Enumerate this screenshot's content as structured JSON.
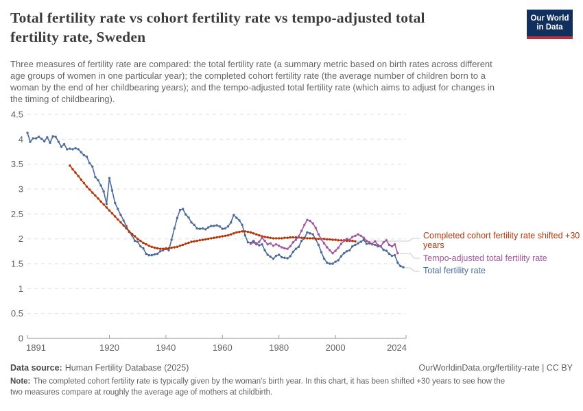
{
  "header": {
    "title_lines": [
      "Total fertility rate vs cohort fertility rate vs tempo-adjusted total",
      "fertility rate, Sweden"
    ],
    "subtitle_lines": [
      "Three measures of fertility rate are compared: the total fertility rate (a summary metric based on birth rates across different",
      "age groups of women in one particular year); the completed cohort fertility rate (the average number of children born to a",
      "woman by the end of her childbearing years); and the tempo-adjusted total fertility rate (which aims to adjust for changes in",
      "the timing of childbearing)."
    ],
    "logo": {
      "line1": "Our World",
      "line2": "in Data",
      "bg_color": "#12305e",
      "accent_color": "#bf3036"
    }
  },
  "chart_data": {
    "type": "line",
    "title": "Total fertility rate vs cohort fertility rate vs tempo-adjusted total fertility rate, Sweden",
    "xlim": [
      1891,
      2024
    ],
    "ylim": [
      0,
      4.5
    ],
    "x_ticks": [
      1891,
      1920,
      1940,
      1960,
      1980,
      2000,
      2024
    ],
    "y_ticks": [
      0,
      0.5,
      1,
      1.5,
      2,
      2.5,
      3,
      3.5,
      4,
      4.5
    ],
    "grid": "dashed-horizontal",
    "legend_position": "right",
    "series": [
      {
        "name": "Total fertility rate",
        "color": "#4C6A9C",
        "start_year": 1891,
        "values": [
          4.13,
          3.95,
          4.02,
          4.02,
          4.05,
          4.01,
          3.96,
          4.04,
          3.93,
          4.06,
          4.05,
          3.95,
          3.85,
          3.9,
          3.8,
          3.81,
          3.8,
          3.82,
          3.8,
          3.74,
          3.68,
          3.65,
          3.52,
          3.45,
          3.24,
          3.18,
          3.07,
          2.95,
          2.7,
          3.22,
          2.97,
          2.72,
          2.6,
          2.48,
          2.37,
          2.26,
          2.14,
          2.07,
          1.96,
          1.94,
          1.85,
          1.81,
          1.7,
          1.67,
          1.67,
          1.69,
          1.7,
          1.75,
          1.77,
          1.81,
          1.77,
          1.98,
          2.21,
          2.42,
          2.58,
          2.6,
          2.49,
          2.43,
          2.33,
          2.28,
          2.21,
          2.2,
          2.21,
          2.19,
          2.23,
          2.26,
          2.26,
          2.27,
          2.25,
          2.2,
          2.21,
          2.25,
          2.33,
          2.48,
          2.42,
          2.37,
          2.28,
          2.07,
          1.93,
          1.92,
          1.96,
          1.91,
          1.87,
          1.89,
          1.77,
          1.68,
          1.64,
          1.6,
          1.66,
          1.68,
          1.63,
          1.62,
          1.61,
          1.65,
          1.74,
          1.8,
          1.84,
          1.96,
          2.01,
          2.13,
          2.11,
          2.09,
          1.99,
          1.88,
          1.73,
          1.6,
          1.52,
          1.5,
          1.5,
          1.54,
          1.57,
          1.65,
          1.71,
          1.75,
          1.77,
          1.85,
          1.88,
          1.91,
          1.94,
          1.98,
          1.9,
          1.91,
          1.89,
          1.88,
          1.85,
          1.85,
          1.78,
          1.76,
          1.7,
          1.66,
          1.67,
          1.52,
          1.45,
          1.43
        ]
      },
      {
        "name": "Completed cohort fertility rate shifted +30 years",
        "color": "#B13507",
        "start_year": 1906,
        "values": [
          3.47,
          3.4,
          3.33,
          3.26,
          3.19,
          3.12,
          3.05,
          2.99,
          2.93,
          2.87,
          2.81,
          2.75,
          2.69,
          2.63,
          2.57,
          2.51,
          2.45,
          2.39,
          2.33,
          2.27,
          2.21,
          2.15,
          2.1,
          2.05,
          2.0,
          1.96,
          1.92,
          1.89,
          1.86,
          1.84,
          1.82,
          1.81,
          1.8,
          1.8,
          1.8,
          1.81,
          1.82,
          1.83,
          1.84,
          1.86,
          1.88,
          1.9,
          1.92,
          1.94,
          1.95,
          1.96,
          1.97,
          1.98,
          1.99,
          2.0,
          2.01,
          2.02,
          2.03,
          2.04,
          2.05,
          2.06,
          2.07,
          2.09,
          2.11,
          2.13,
          2.14,
          2.15,
          2.15,
          2.14,
          2.13,
          2.11,
          2.09,
          2.07,
          2.05,
          2.04,
          2.03,
          2.02,
          2.01,
          2.01,
          2.01,
          2.01,
          2.02,
          2.02,
          2.03,
          2.03,
          2.03,
          2.03,
          2.02,
          2.02,
          2.01,
          2.01,
          2.01,
          2.0,
          2.0,
          2.0,
          2.0,
          1.99,
          1.99,
          1.98,
          1.98,
          1.97,
          1.97,
          1.97,
          1.96,
          1.96,
          1.96,
          1.95
        ]
      },
      {
        "name": "Tempo-adjusted total fertility rate",
        "color": "#A2559C",
        "start_year": 1970,
        "values": [
          1.9,
          1.93,
          1.89,
          1.94,
          2.02,
          1.96,
          1.89,
          1.91,
          1.86,
          1.89,
          1.86,
          1.83,
          1.81,
          1.8,
          1.85,
          1.93,
          1.98,
          2.05,
          2.16,
          2.28,
          2.38,
          2.36,
          2.31,
          2.22,
          2.09,
          1.99,
          1.91,
          1.83,
          1.77,
          1.71,
          1.76,
          1.82,
          1.9,
          1.96,
          2.0,
          1.98,
          2.04,
          2.06,
          2.09,
          2.06,
          2.02,
          1.96,
          1.93,
          1.9,
          1.95,
          1.88,
          1.85,
          1.93,
          1.97,
          1.88,
          1.85,
          1.89,
          1.71
        ]
      }
    ]
  },
  "footer": {
    "datasource_label": "Data source:",
    "datasource_value": "Human Fertility Database (2025)",
    "origin": "OurWorldinData.org/fertility-rate | CC BY",
    "note_label": "Note:",
    "note_line1": "The completed cohort fertility rate is typically given by the woman's birth year. In this chart, it has been shifted +30 years to see how the",
    "note_line2": "two measures compare at roughly the average age of mothers at childbirth."
  }
}
